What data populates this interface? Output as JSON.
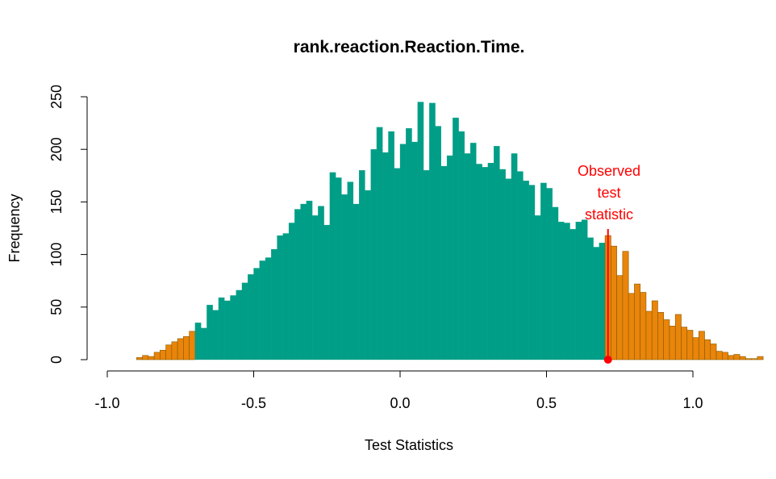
{
  "chart_data": {
    "type": "bar",
    "title": "rank.reaction.Reaction.Time.",
    "xlabel": "Test Statistics",
    "ylabel": "Frequency",
    "xlim": [
      -1.0,
      1.0
    ],
    "ylim": [
      0,
      250
    ],
    "x_ticks": [
      "-1.0",
      "-0.5",
      "0.0",
      "0.5",
      "1.0"
    ],
    "y_ticks": [
      "0",
      "50",
      "100",
      "150",
      "200",
      "250"
    ],
    "bin_width": 0.02,
    "bin_start": -0.9,
    "values": [
      2,
      4,
      3,
      7,
      9,
      14,
      17,
      20,
      22,
      27,
      35,
      30,
      52,
      47,
      59,
      56,
      61,
      66,
      73,
      81,
      87,
      94,
      97,
      105,
      118,
      120,
      130,
      143,
      148,
      151,
      137,
      146,
      128,
      178,
      173,
      157,
      169,
      148,
      180,
      161,
      200,
      221,
      197,
      217,
      182,
      205,
      220,
      207,
      245,
      180,
      244,
      222,
      184,
      194,
      230,
      217,
      196,
      206,
      186,
      183,
      187,
      203,
      181,
      172,
      196,
      179,
      170,
      166,
      137,
      168,
      163,
      145,
      131,
      130,
      124,
      131,
      133,
      116,
      107,
      111,
      118,
      108,
      80,
      103,
      63,
      72,
      64,
      46,
      56,
      45,
      38,
      32,
      43,
      31,
      28,
      21,
      27,
      19,
      15,
      8,
      7,
      4,
      5,
      3,
      1,
      1,
      3
    ],
    "tail_threshold": 0.7,
    "colors": {
      "bulk": "#009e87",
      "tail": "#e8850a",
      "tail_stroke": "#8a5a00",
      "marker": "#ff0000"
    },
    "observed": {
      "value": 0.71,
      "label": [
        "Observed",
        "test",
        "statistic"
      ]
    }
  }
}
